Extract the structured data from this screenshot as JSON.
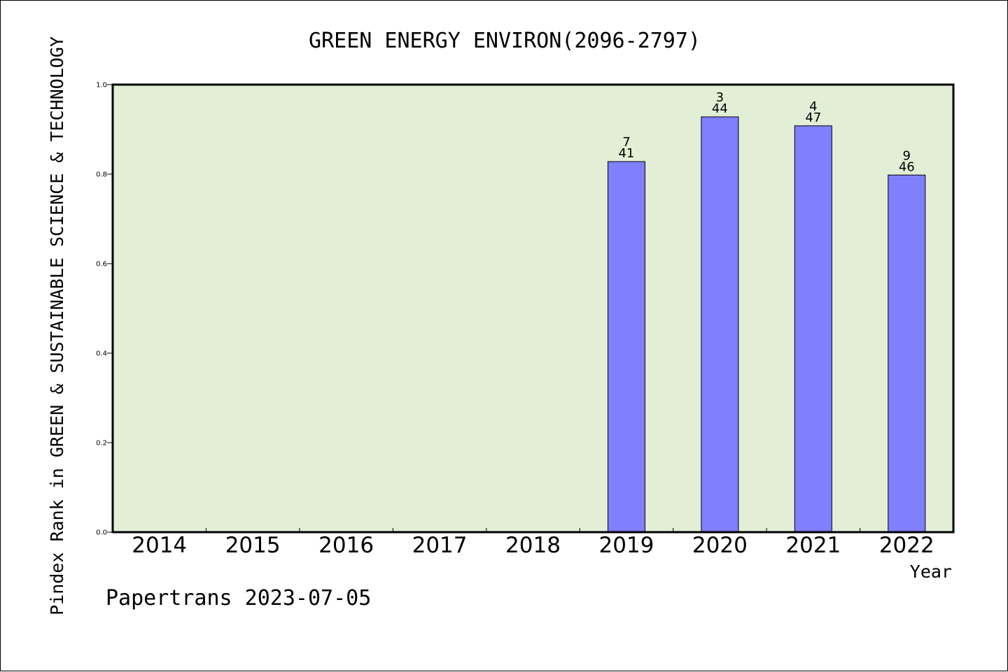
{
  "chart_data": {
    "type": "bar",
    "title": "GREEN ENERGY ENVIRON(2096-2797)",
    "xlabel": "Year",
    "ylabel": "Pindex Rank in GREEN & SUSTAINABLE SCIENCE & TECHNOLOGY",
    "categories": [
      "2014",
      "2015",
      "2016",
      "2017",
      "2018",
      "2019",
      "2020",
      "2021",
      "2022"
    ],
    "values": [
      null,
      null,
      null,
      null,
      null,
      0.828,
      0.928,
      0.908,
      0.798
    ],
    "labels_top": [
      "",
      "",
      "",
      "",
      "",
      "7",
      "3",
      "4",
      "9"
    ],
    "labels_bottom": [
      "",
      "",
      "",
      "",
      "",
      "41",
      "44",
      "47",
      "46"
    ],
    "ylim": [
      0,
      1.0
    ],
    "yticks": [
      "0.0",
      "0.2",
      "0.4",
      "0.6",
      "0.8",
      "1.0"
    ],
    "grid": false,
    "colors": {
      "plot_bg": "#e2efd6",
      "bar": "#8080ff",
      "axis": "#000000"
    }
  },
  "footer": {
    "credit": "Papertrans 2023-07-05"
  }
}
